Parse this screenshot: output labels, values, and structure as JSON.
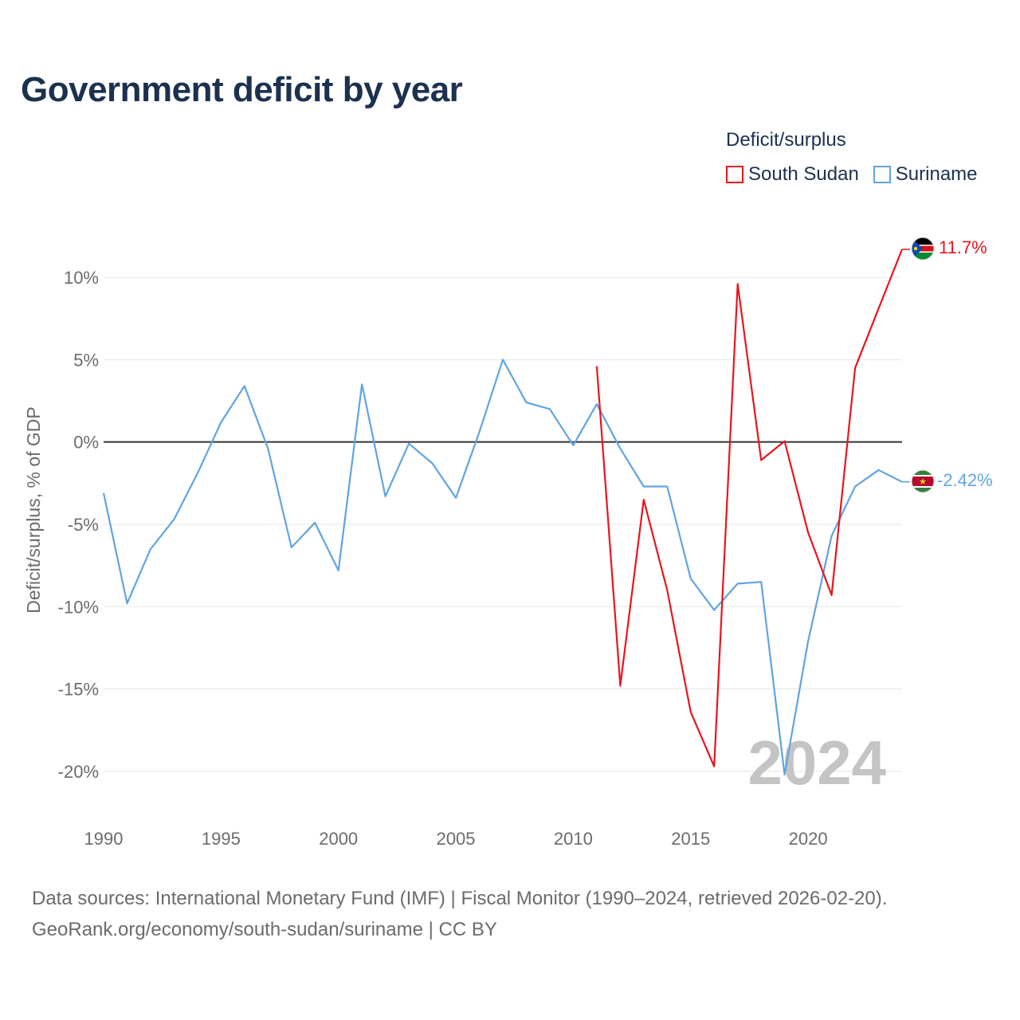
{
  "title": "Government deficit by year",
  "legend": {
    "title": "Deficit/surplus",
    "items": [
      {
        "label": "South Sudan",
        "color": "#e8141e"
      },
      {
        "label": "Suriname",
        "color": "#5fa4e4"
      }
    ]
  },
  "footer": {
    "line1": "Data sources: International Monetary Fund (IMF) | Fiscal Monitor (1990–2024, retrieved 2026-02-20).",
    "line2": "GeoRank.org/economy/south-sudan/suriname | CC BY"
  },
  "year_watermark": "2024",
  "chart_data": {
    "type": "line",
    "title": "Government deficit by year",
    "xlabel": "",
    "ylabel": "Deficit/surplus, % of GDP",
    "xlim": [
      1990,
      2024
    ],
    "ylim": [
      -20,
      10
    ],
    "x_ticks": [
      1990,
      1995,
      2000,
      2005,
      2010,
      2015,
      2020
    ],
    "x_tick_labels": [
      "1990",
      "1995",
      "2000",
      "2005",
      "2010",
      "2015",
      "2020"
    ],
    "y_ticks": [
      10,
      5,
      0,
      -5,
      -10,
      -15,
      -20
    ],
    "y_tick_labels": [
      "10%",
      "5%",
      "0%",
      "-5%",
      "-10%",
      "-15%",
      "-20%"
    ],
    "grid": true,
    "legend_position": "top-right",
    "series": [
      {
        "name": "South Sudan",
        "color": "#e8141e",
        "end_label": "11.7%",
        "points": [
          [
            2011,
            4.6
          ],
          [
            2012,
            -14.8
          ],
          [
            2013,
            -3.5
          ],
          [
            2014,
            -9.0
          ],
          [
            2015,
            -16.4
          ],
          [
            2016,
            -19.7
          ],
          [
            2017,
            9.6
          ],
          [
            2018,
            -1.1
          ],
          [
            2019,
            0.05
          ],
          [
            2020,
            -5.5
          ],
          [
            2021,
            -9.3
          ],
          [
            2022,
            4.5
          ],
          [
            2023,
            8.1
          ],
          [
            2024,
            11.7
          ]
        ]
      },
      {
        "name": "Suriname",
        "color": "#5fa4e4",
        "end_label": "-2.42%",
        "points": [
          [
            1990,
            -3.1
          ],
          [
            1991,
            -9.8
          ],
          [
            1992,
            -6.5
          ],
          [
            1993,
            -4.7
          ],
          [
            1994,
            -1.9
          ],
          [
            1995,
            1.2
          ],
          [
            1996,
            3.4
          ],
          [
            1997,
            -0.4
          ],
          [
            1998,
            -6.4
          ],
          [
            1999,
            -4.9
          ],
          [
            2000,
            -7.8
          ],
          [
            2001,
            3.5
          ],
          [
            2002,
            -3.3
          ],
          [
            2003,
            -0.1
          ],
          [
            2004,
            -1.3
          ],
          [
            2005,
            -3.4
          ],
          [
            2006,
            0.6
          ],
          [
            2007,
            5.0
          ],
          [
            2008,
            2.4
          ],
          [
            2009,
            2.0
          ],
          [
            2010,
            -0.2
          ],
          [
            2011,
            2.3
          ],
          [
            2012,
            -0.4
          ],
          [
            2013,
            -2.7
          ],
          [
            2014,
            -2.7
          ],
          [
            2015,
            -8.3
          ],
          [
            2016,
            -10.2
          ],
          [
            2017,
            -8.6
          ],
          [
            2018,
            -8.5
          ],
          [
            2019,
            -20.2
          ],
          [
            2020,
            -12.1
          ],
          [
            2021,
            -5.7
          ],
          [
            2022,
            -2.7
          ],
          [
            2023,
            -1.7
          ],
          [
            2024,
            -2.42
          ]
        ]
      }
    ]
  }
}
